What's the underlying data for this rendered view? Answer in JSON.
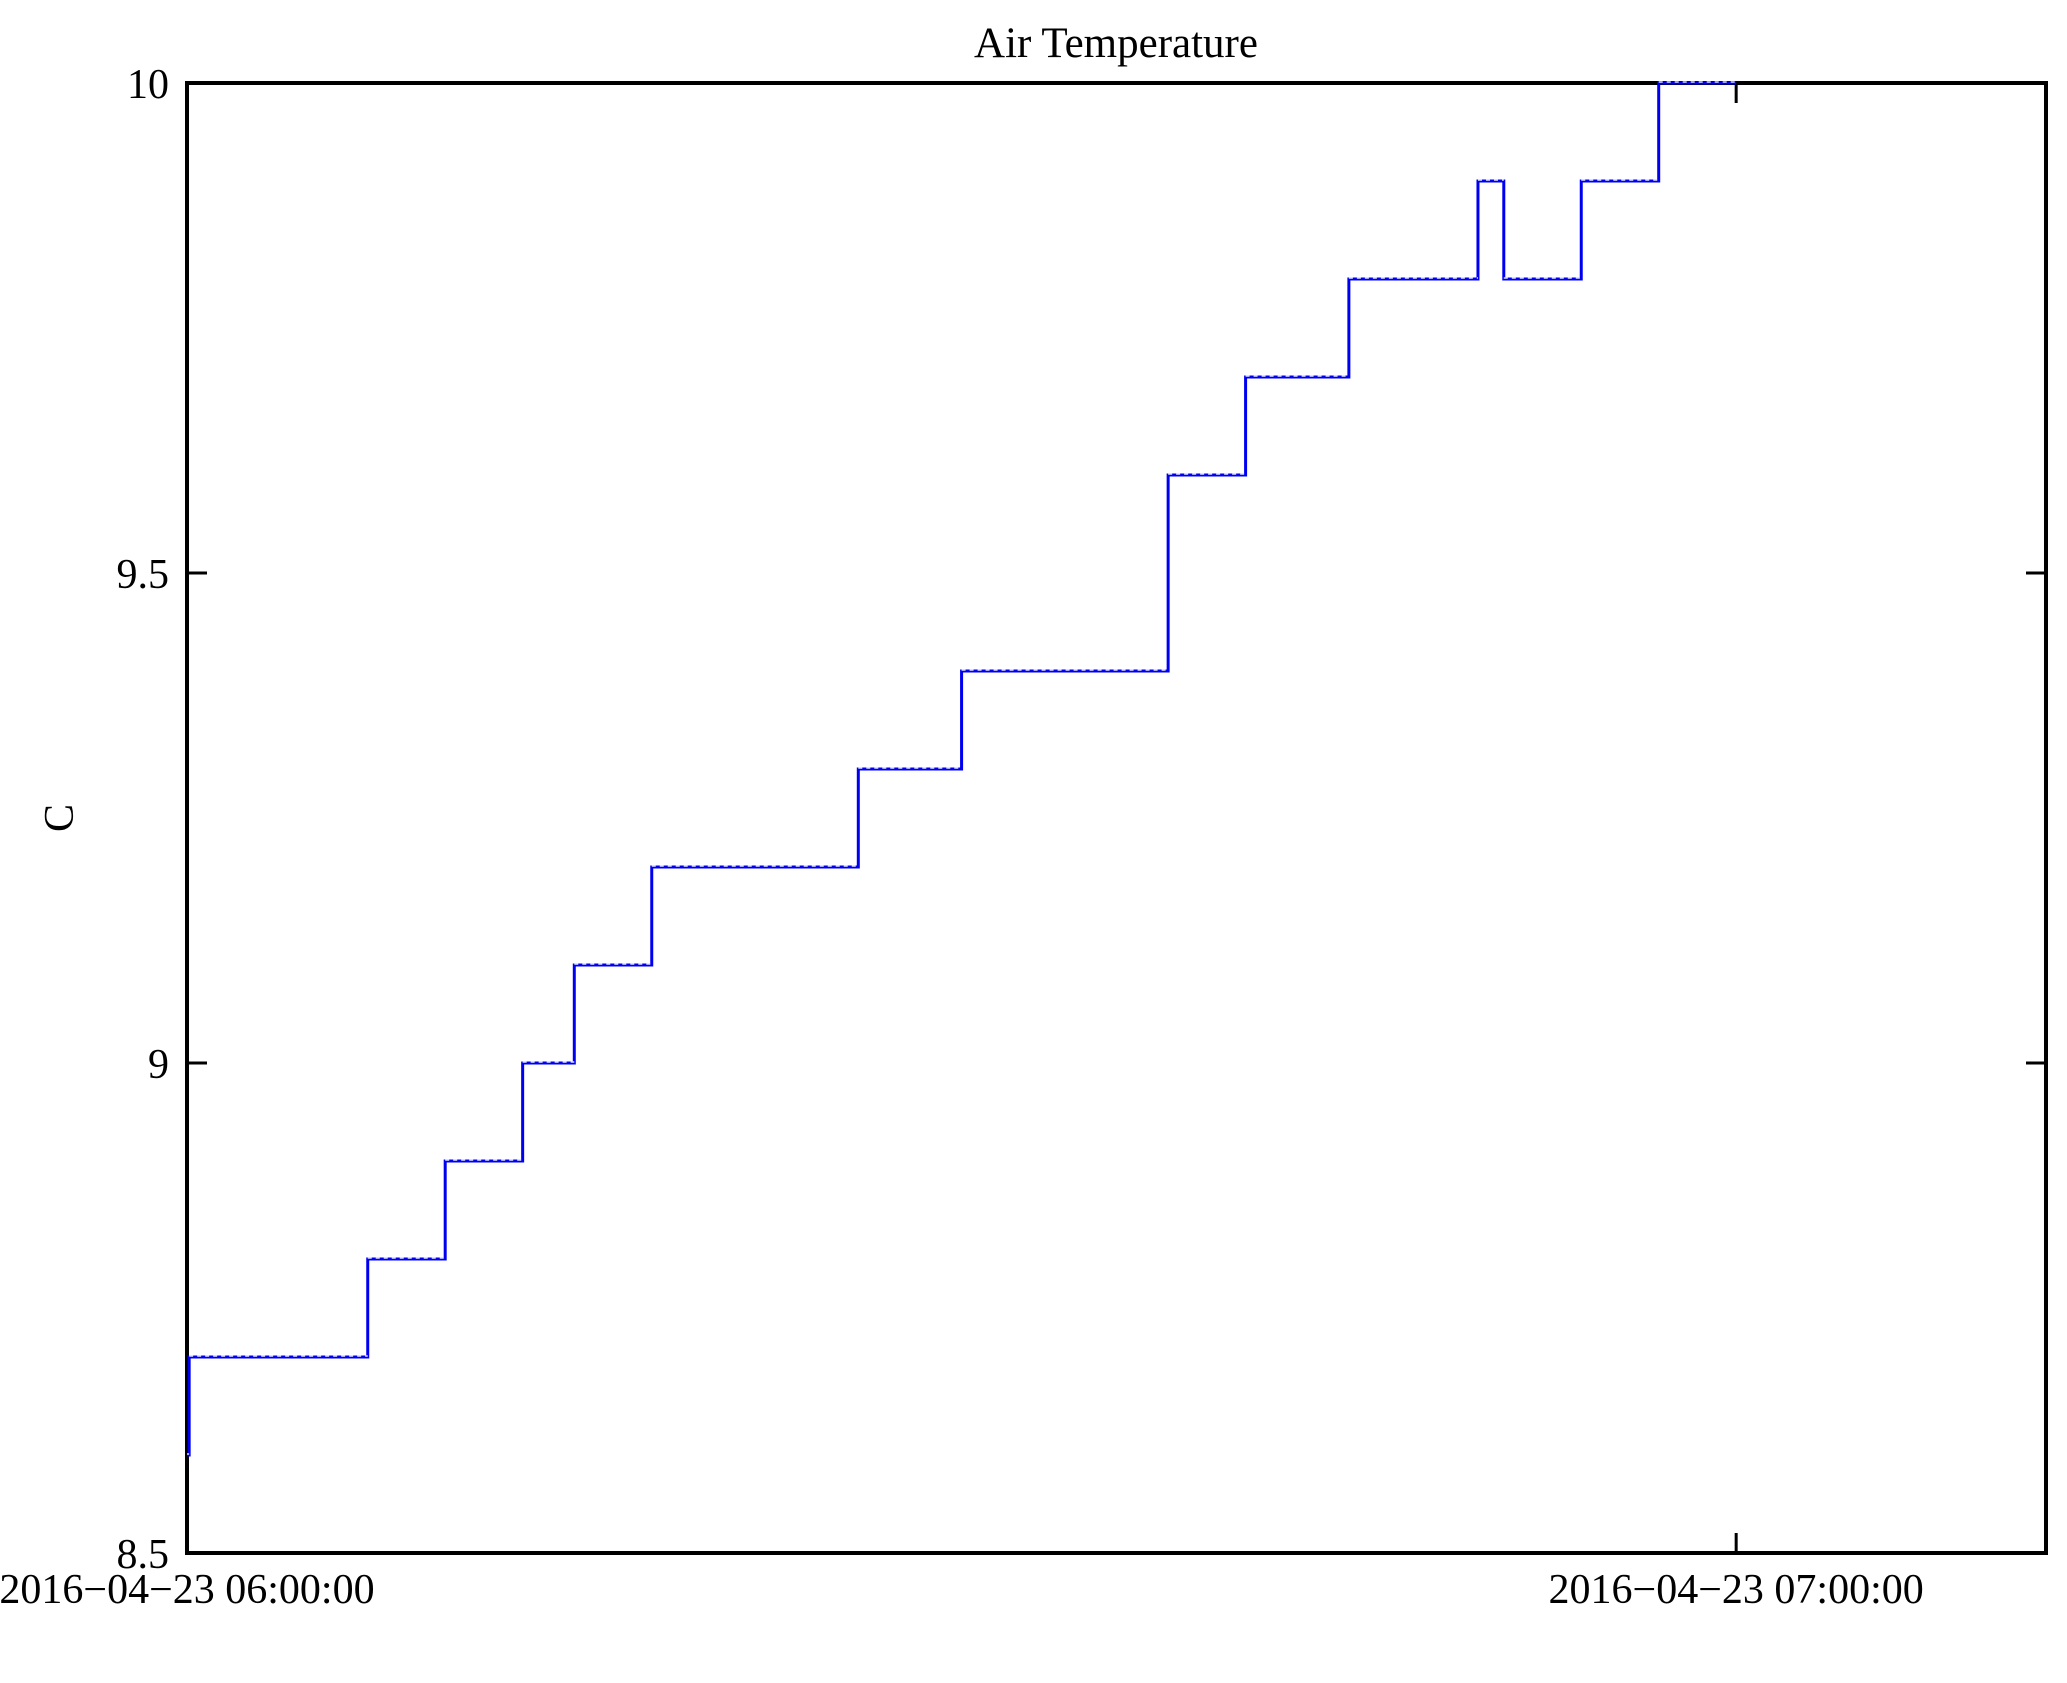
{
  "figure": {
    "background": "#ffffff",
    "axis_color": "#000000"
  },
  "chart_data": {
    "type": "line",
    "step_mode": "post",
    "title": "Air Temperature",
    "xlabel": "",
    "ylabel": "C",
    "date": "2016-04-23",
    "xlim": [
      "06:00:00",
      "07:12:00"
    ],
    "ylim": [
      8.5,
      10
    ],
    "grid": false,
    "legend_position": "none",
    "line_color": "#0000f0",
    "dash_overlay_color": "#d8dcff",
    "yticks": [
      {
        "value": 10,
        "label": "10"
      },
      {
        "value": 9.5,
        "label": "9.5"
      },
      {
        "value": 9,
        "label": "9"
      },
      {
        "value": 8.5,
        "label": "8.5"
      }
    ],
    "xticks": [
      {
        "time": "06:00:00",
        "label": "2016−04−23 06:00:00"
      },
      {
        "time": "07:00:00",
        "label": "2016−04−23 07:00:00"
      }
    ],
    "series": [
      {
        "name": "Air Temperature",
        "color": "#0000f0",
        "points": [
          [
            "06:00:00",
            8.6
          ],
          [
            "06:00:05",
            8.7
          ],
          [
            "06:07:00",
            8.8
          ],
          [
            "06:10:00",
            8.9
          ],
          [
            "06:13:00",
            9.0
          ],
          [
            "06:15:00",
            9.1
          ],
          [
            "06:18:00",
            9.2
          ],
          [
            "06:26:00",
            9.3
          ],
          [
            "06:30:00",
            9.4
          ],
          [
            "06:38:00",
            9.6
          ],
          [
            "06:41:00",
            9.7
          ],
          [
            "06:45:00",
            9.8
          ],
          [
            "06:50:00",
            9.9
          ],
          [
            "06:51:00",
            9.8
          ],
          [
            "06:54:00",
            9.9
          ],
          [
            "06:57:00",
            10.0
          ],
          [
            "07:00:00",
            10.0
          ]
        ]
      }
    ]
  }
}
